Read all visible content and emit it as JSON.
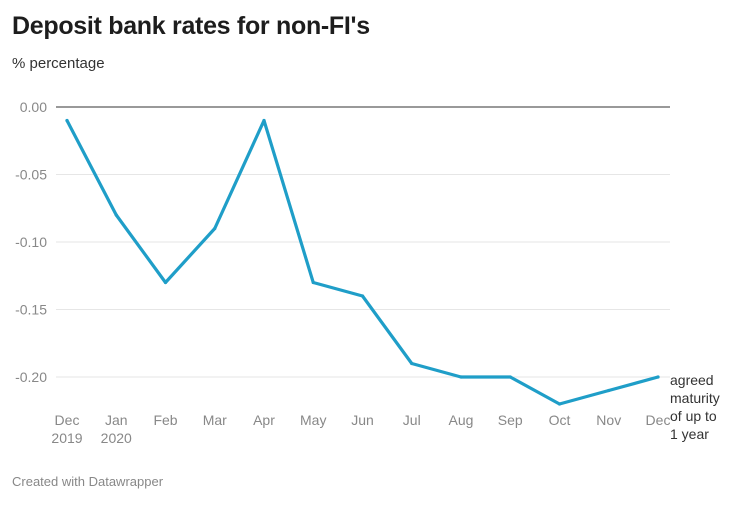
{
  "chart_data": {
    "type": "line",
    "title": "Deposit bank rates for non-FI's",
    "subtitle": "% percentage",
    "x": [
      "Dec 2019",
      "Jan 2020",
      "Feb",
      "Mar",
      "Apr",
      "May",
      "Jun",
      "Jul",
      "Aug",
      "Sep",
      "Oct",
      "Nov",
      "Dec"
    ],
    "x_tick_lines": [
      [
        "Dec",
        "2019"
      ],
      [
        "Jan",
        "2020"
      ],
      [
        "Feb"
      ],
      [
        "Mar"
      ],
      [
        "Apr"
      ],
      [
        "May"
      ],
      [
        "Jun"
      ],
      [
        "Jul"
      ],
      [
        "Aug"
      ],
      [
        "Sep"
      ],
      [
        "Oct"
      ],
      [
        "Nov"
      ],
      [
        "Dec"
      ]
    ],
    "series": [
      {
        "name": "agreed maturity of up to 1 year",
        "name_lines": [
          "agreed",
          "maturity",
          "of up to",
          "1 year"
        ],
        "color": "#1f9ec8",
        "values": [
          -0.01,
          -0.08,
          -0.13,
          -0.09,
          -0.01,
          -0.13,
          -0.14,
          -0.19,
          -0.2,
          -0.2,
          -0.22,
          -0.21,
          -0.2
        ]
      }
    ],
    "y_ticks": [
      "0.00",
      "-0.05",
      "-0.10",
      "-0.15",
      "-0.20"
    ],
    "y_tick_values": [
      0.0,
      -0.05,
      -0.1,
      -0.15,
      -0.2
    ],
    "ylim": [
      -0.22,
      0.0
    ],
    "grid": true,
    "footer": "Created with Datawrapper"
  }
}
